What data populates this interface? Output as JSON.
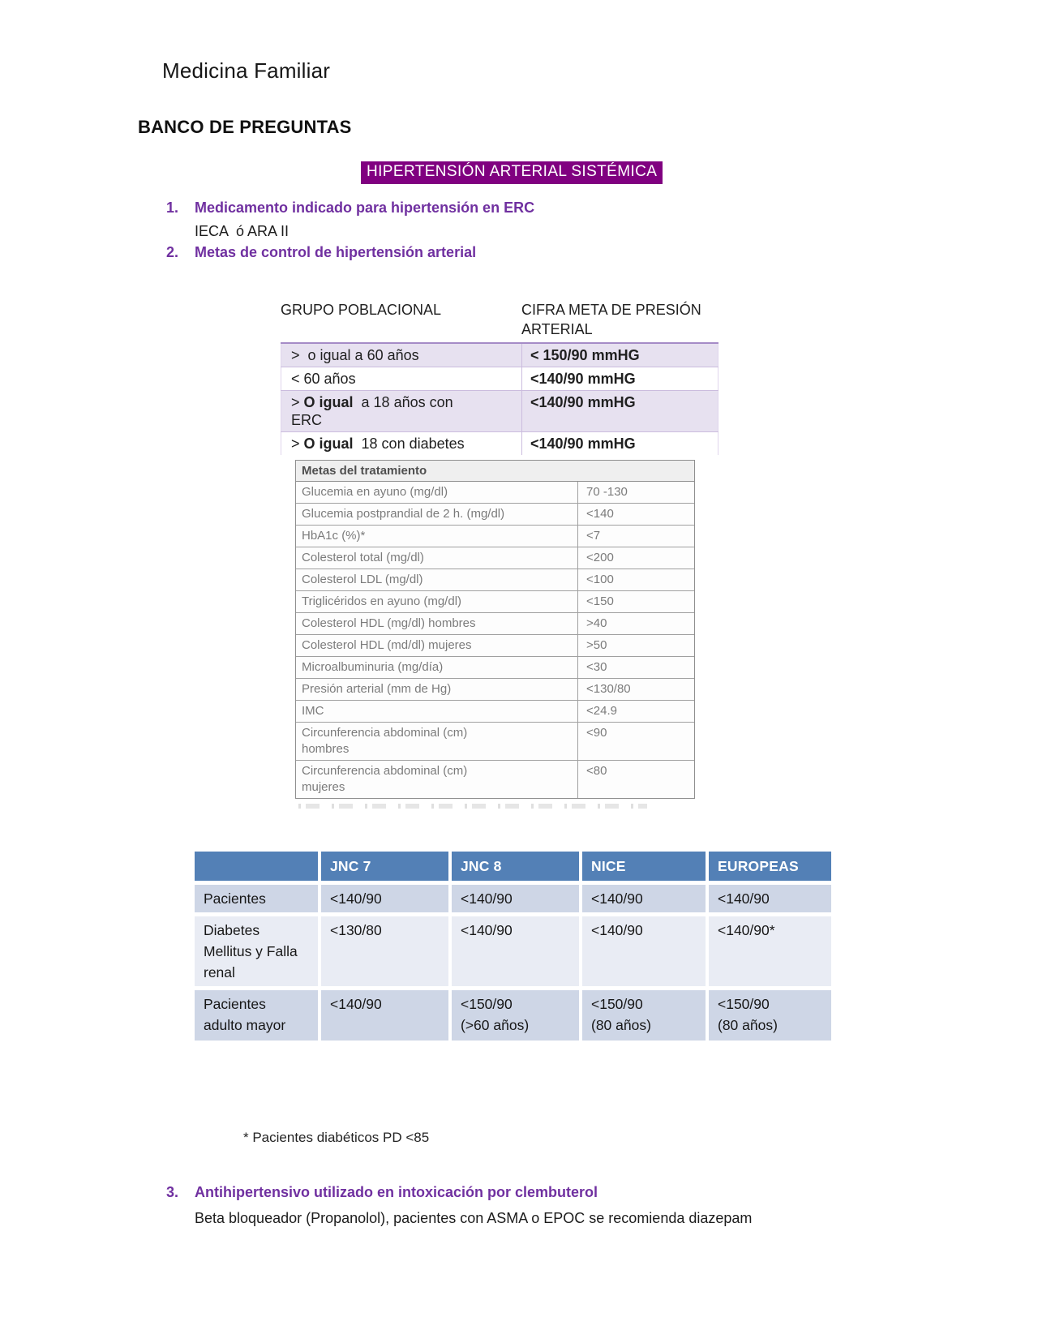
{
  "page": {
    "header": "Medicina Familiar",
    "section_title": "BANCO DE PREGUNTAS",
    "topic_title": "HIPERTENSIÓN ARTERIAL SISTÉMICA"
  },
  "questions": [
    {
      "number": "1.",
      "question": "Medicamento indicado para hipertensión en ERC",
      "answer": "IECA  ó ARA II"
    },
    {
      "number": "2.",
      "question": "Metas de control de hipertensión arterial",
      "answer": ""
    },
    {
      "number": "3.",
      "question": "Antihipertensivo utilizado en intoxicación por clembuterol",
      "answer": "Beta bloqueador (Propanolol), pacientes con ASMA o EPOC se recomienda diazepam"
    }
  ],
  "bp_table": {
    "headers": [
      "GRUPO POBLACIONAL",
      "CIFRA META DE PRESIÓN\nARTERIAL"
    ],
    "rows": [
      {
        "pre": ">  o igual a 60 años",
        "bold": "",
        "post": "",
        "target": "< 150/90 mmHG"
      },
      {
        "pre": "< 60 años",
        "bold": "",
        "post": "",
        "target": "<140/90 mmHG"
      },
      {
        "pre": "> ",
        "bold": "O igual",
        "post": "  a 18 años con\nERC",
        "target": "<140/90 mmHG"
      },
      {
        "pre": "> ",
        "bold": "O igual",
        "post": "  18 con diabetes",
        "target": "<140/90 mmHG"
      }
    ]
  },
  "goals_table": {
    "title": "Metas del tratamiento",
    "rows": [
      {
        "label": "Glucemia en ayuno (mg/dl)",
        "value": "70 -130"
      },
      {
        "label": "Glucemia postprandial de 2 h. (mg/dl)",
        "value": "<140"
      },
      {
        "label": "HbA1c (%)*",
        "value": "<7"
      },
      {
        "label": "Colesterol total (mg/dl)",
        "value": "<200"
      },
      {
        "label": "Colesterol LDL (mg/dl)",
        "value": "<100"
      },
      {
        "label": "Triglicéridos en ayuno (mg/dl)",
        "value": "<150"
      },
      {
        "label": "Colesterol HDL (mg/dl) hombres",
        "value": ">40"
      },
      {
        "label": "Colesterol HDL (md/dl) mujeres",
        "value": ">50"
      },
      {
        "label": "Microalbuminuria (mg/día)",
        "value": "<30"
      },
      {
        "label": "Presión arterial (mm de Hg)",
        "value": "<130/80"
      },
      {
        "label": "IMC",
        "value": "<24.9"
      },
      {
        "label": "Circunferencia abdominal (cm)\nhombres",
        "value": "<90"
      },
      {
        "label": "Circunferencia abdominal (cm)\nmujeres",
        "value": "<80"
      }
    ]
  },
  "jnc_table": {
    "headers": [
      "",
      "JNC 7",
      "JNC 8",
      "NICE",
      "EUROPEAS"
    ],
    "rows": [
      {
        "label": "Pacientes",
        "values": [
          "<140/90",
          "<140/90",
          "<140/90",
          "<140/90"
        ]
      },
      {
        "label": "Diabetes\nMellitus y Falla\nrenal",
        "values": [
          "<130/80",
          "<140/90",
          "<140/90",
          "<140/90*"
        ]
      },
      {
        "label": "Pacientes\nadulto mayor",
        "values": [
          "<140/90",
          "<150/90\n(>60 años)",
          "<150/90\n(80 años)",
          "<150/90\n(80 años)"
        ]
      }
    ],
    "footnote": "* Pacientes diabéticos PD <85"
  },
  "colors": {
    "accent_purple_text": "#7030A0",
    "topic_highlight_bg": "#800080",
    "bp_table_row_bg": "#E7E1F0",
    "bp_table_border": "#A58BC7",
    "jnc_header_bg": "#5380B6",
    "jnc_row_dark": "#CED6E6",
    "jnc_row_light": "#E9ECF4",
    "goals_table_text": "#7B7B7B"
  }
}
